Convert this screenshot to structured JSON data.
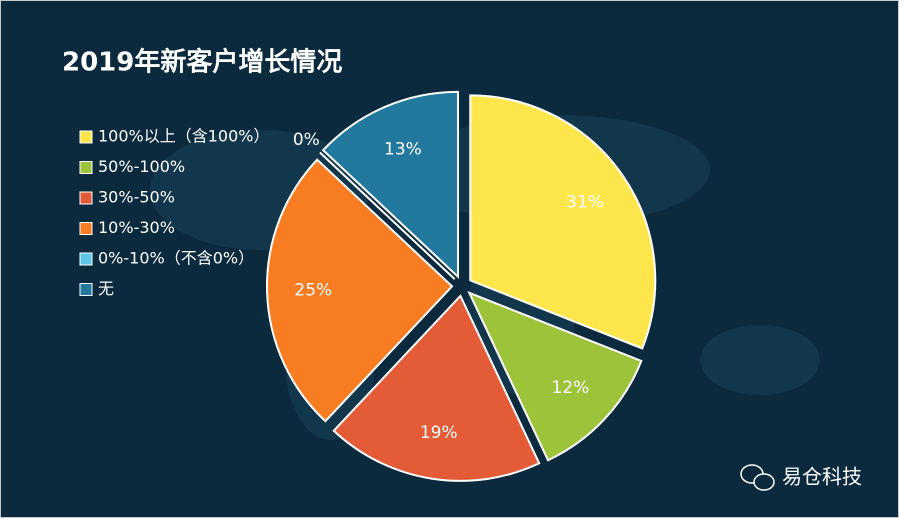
{
  "chart_data": {
    "type": "pie",
    "title": "2019年新客户增长情况",
    "categories": [
      "100%以上（含100%）",
      "50%-100%",
      "30%-50%",
      "10%-30%",
      "0%-10%（不含0%）",
      "无"
    ],
    "values": [
      31,
      12,
      19,
      25,
      0,
      13
    ],
    "value_labels": [
      "31%",
      "12%",
      "19%",
      "25%",
      "0%",
      "13%"
    ],
    "colors": [
      "#fde64b",
      "#9dc33b",
      "#e35b37",
      "#f87c22",
      "#5bc8e8",
      "#23789e"
    ],
    "legend": "left",
    "watermark": "易仓科技"
  }
}
